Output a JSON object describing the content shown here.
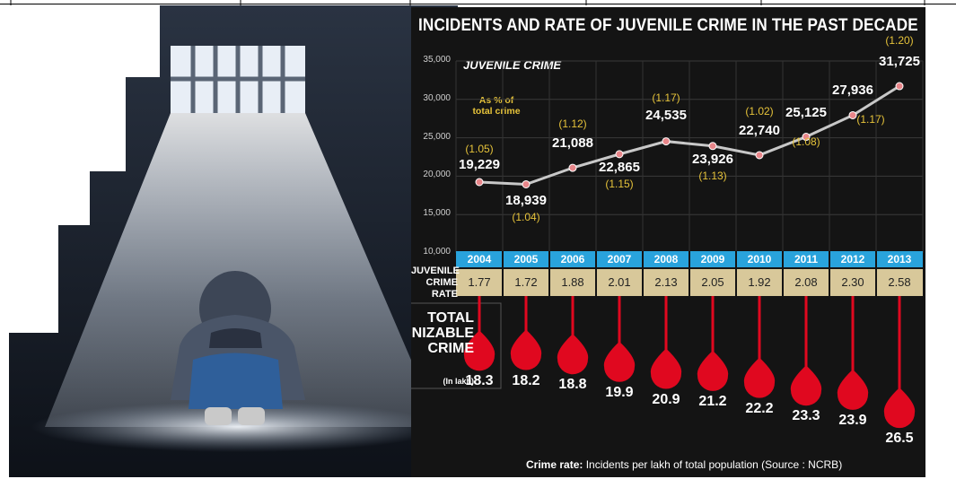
{
  "page": {
    "background": "#ffffff",
    "panel_background": "#141414"
  },
  "chart_data": {
    "type": "line",
    "title": "INCIDENTS AND RATE OF JUVENILE CRIME IN THE PAST DECADE",
    "series_label": "JUVENILE CRIME",
    "note": "As % of total crime",
    "x": [
      "2004",
      "2005",
      "2006",
      "2007",
      "2008",
      "2009",
      "2010",
      "2011",
      "2012",
      "2013"
    ],
    "series": [
      {
        "name": "Juvenile crime",
        "values": [
          19229,
          18939,
          21088,
          22865,
          24535,
          23926,
          22740,
          25125,
          27936,
          31725
        ]
      }
    ],
    "value_labels": [
      "19,229",
      "18,939",
      "21,088",
      "22,865",
      "24,535",
      "23,926",
      "22,740",
      "25,125",
      "27,936",
      "31,725"
    ],
    "pct_of_total": [
      "(1.05)",
      "(1.04)",
      "(1.12)",
      "(1.15)",
      "(1.17)",
      "(1.13)",
      "(1.02)",
      "(1.08)",
      "(1.17)",
      "(1.20)"
    ],
    "yticks": [
      "35,000",
      "30,000",
      "25,000",
      "20,000",
      "15,000",
      "10,000"
    ],
    "ylim": [
      10000,
      35000
    ],
    "juvenile_crime_rate": {
      "label": "JUVENILE CRIME RATE",
      "values": [
        "1.77",
        "1.72",
        "1.88",
        "2.01",
        "2.13",
        "2.05",
        "1.92",
        "2.08",
        "2.30",
        "2.58"
      ]
    },
    "total_cognizable_crime": {
      "label": "TOTAL COGNIZABLE CRIME",
      "unit": "(In lakh)",
      "values": [
        18.3,
        18.2,
        18.8,
        19.9,
        20.9,
        21.2,
        22.2,
        23.3,
        23.9,
        26.5
      ]
    },
    "footnote_label": "Crime rate:",
    "footnote_text": "Incidents per lakh of total population  (Source : NCRB)",
    "colors": {
      "line": "#c8c8c8",
      "marker": "#e8868a",
      "year_band": "#29a3dc",
      "rate_band": "#d8c89a",
      "drop": "#e0081f",
      "accent_text": "#e6c33a"
    }
  }
}
